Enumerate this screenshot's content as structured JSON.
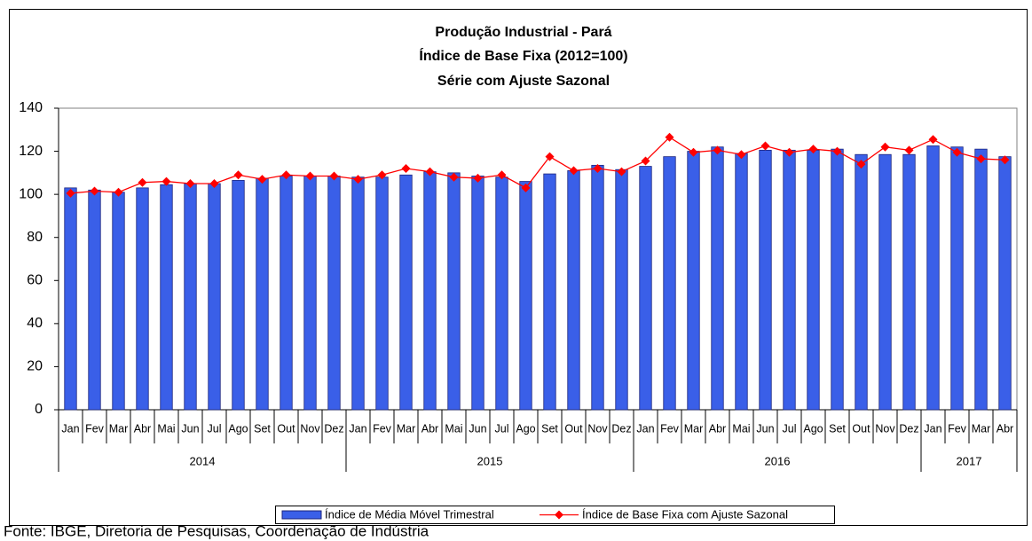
{
  "chart_data": {
    "type": "bar-line",
    "title": [
      "Produção Industrial - Pará",
      "Índice de Base Fixa (2012=100)",
      "Série com Ajuste Sazonal"
    ],
    "categories": [
      "Jan",
      "Fev",
      "Mar",
      "Abr",
      "Mai",
      "Jun",
      "Jul",
      "Ago",
      "Set",
      "Out",
      "Nov",
      "Dez",
      "Jan",
      "Fev",
      "Mar",
      "Abr",
      "Mai",
      "Jun",
      "Jul",
      "Ago",
      "Set",
      "Out",
      "Nov",
      "Dez",
      "Jan",
      "Fev",
      "Mar",
      "Abr",
      "Mai",
      "Jun",
      "Jul",
      "Ago",
      "Set",
      "Out",
      "Nov",
      "Dez",
      "Jan",
      "Fev",
      "Mar",
      "Abr"
    ],
    "category_groups": [
      {
        "label": "2014",
        "months": 12
      },
      {
        "label": "2015",
        "months": 12
      },
      {
        "label": "2016",
        "months": 12
      },
      {
        "label": "2017",
        "months": 4
      }
    ],
    "series": [
      {
        "name": "Índice de Média Móvel Trimestral",
        "kind": "bar",
        "color": "#3a5fe8",
        "values": [
          103,
          102,
          101,
          103,
          104.5,
          105,
          105,
          106.5,
          107.5,
          108.5,
          108.5,
          108.5,
          108,
          108,
          109,
          110.5,
          110,
          108.5,
          108,
          106,
          109.5,
          111,
          113.5,
          111.5,
          113,
          117.5,
          120,
          122,
          119,
          120.5,
          120.5,
          120.5,
          121,
          118.5,
          118.5,
          118.5,
          122.5,
          122,
          121,
          117.5
        ]
      },
      {
        "name": "Índice de Base Fixa com Ajuste Sazonal",
        "kind": "line",
        "color": "#ff0000",
        "values": [
          100.5,
          101.5,
          101,
          105.5,
          106,
          105,
          105,
          109,
          107,
          109,
          108.5,
          108.5,
          107,
          109,
          112,
          110.5,
          108,
          107.5,
          109,
          103,
          117.5,
          111,
          112,
          110.5,
          115.5,
          126.5,
          119.5,
          120.5,
          118.5,
          122.5,
          119.5,
          121,
          120,
          114,
          122,
          120.5,
          125.5,
          119.5,
          116.5,
          116
        ]
      }
    ],
    "ylim": [
      0,
      140
    ],
    "yticks": [
      0,
      20,
      40,
      60,
      80,
      100,
      120,
      140
    ],
    "source": "Fonte: IBGE, Diretoria de Pesquisas, Coordenação de Indústria"
  }
}
